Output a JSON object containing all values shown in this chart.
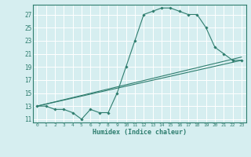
{
  "xlabel": "Humidex (Indice chaleur)",
  "ylabel": "",
  "bg_color": "#d6eef0",
  "grid_color": "#ffffff",
  "line_color": "#2e7d6e",
  "xlim": [
    -0.5,
    23.5
  ],
  "ylim": [
    10.5,
    28.5
  ],
  "yticks": [
    11,
    13,
    15,
    17,
    19,
    21,
    23,
    25,
    27
  ],
  "xticks": [
    0,
    1,
    2,
    3,
    4,
    5,
    6,
    7,
    8,
    9,
    10,
    11,
    12,
    13,
    14,
    15,
    16,
    17,
    18,
    19,
    20,
    21,
    22,
    23
  ],
  "series": [
    {
      "x": [
        0,
        1,
        2,
        3,
        4,
        5,
        6,
        7,
        8,
        9,
        10,
        11,
        12,
        13,
        14,
        15,
        16,
        17,
        18,
        19,
        20,
        21,
        22,
        23
      ],
      "y": [
        13,
        13,
        12.5,
        12.5,
        12,
        11,
        12.5,
        12,
        12,
        15,
        19,
        23,
        27,
        27.5,
        28,
        28,
        27.5,
        27,
        27,
        25,
        22,
        21,
        20,
        20
      ]
    },
    {
      "x": [
        0,
        23
      ],
      "y": [
        13,
        20
      ]
    },
    {
      "x": [
        0,
        23
      ],
      "y": [
        13,
        20.5
      ]
    }
  ]
}
